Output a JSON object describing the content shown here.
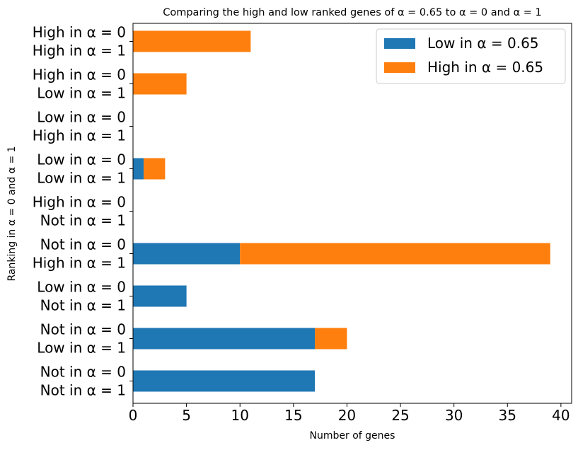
{
  "chart_data": {
    "type": "bar",
    "orientation": "horizontal",
    "stacked": true,
    "title": "Comparing the high and low ranked genes of α = 0.65 to α = 0 and α = 1",
    "xlabel": "Number of genes",
    "ylabel": "Ranking in α = 0 and α = 1",
    "xlim": [
      0,
      41
    ],
    "xticks": [
      0,
      5,
      10,
      15,
      20,
      25,
      30,
      35,
      40
    ],
    "grid": false,
    "legend_position": "top-right",
    "categories": [
      {
        "line1": "Not in α = 0",
        "line2": "Not in α = 1"
      },
      {
        "line1": "Not in α = 0",
        "line2": "Low in α = 1"
      },
      {
        "line1": "Low in α = 0",
        "line2": "Not in α = 1"
      },
      {
        "line1": "Not in α = 0",
        "line2": "High in α = 1"
      },
      {
        "line1": "High in α = 0",
        "line2": "Not in α = 1"
      },
      {
        "line1": "Low in α = 0",
        "line2": "Low in α = 1"
      },
      {
        "line1": "Low in α = 0",
        "line2": "High in α = 1"
      },
      {
        "line1": "High in α = 0",
        "line2": "Low in α = 1"
      },
      {
        "line1": "High in α = 0",
        "line2": "High in α = 1"
      }
    ],
    "series": [
      {
        "name": "Low in α = 0.65",
        "color": "#1f77b4",
        "values": [
          17,
          17,
          5,
          10,
          0,
          1,
          0,
          0,
          0
        ]
      },
      {
        "name": "High in α = 0.65",
        "color": "#ff7f0e",
        "values": [
          0,
          3,
          0,
          29,
          0,
          2,
          0,
          5,
          11
        ]
      }
    ]
  }
}
